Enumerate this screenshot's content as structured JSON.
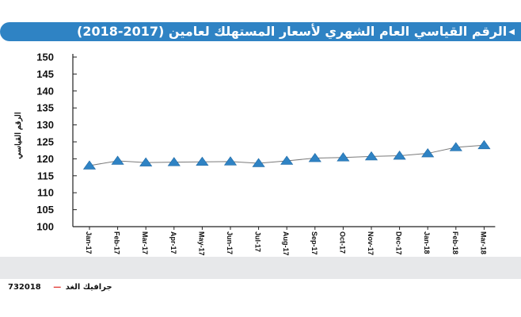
{
  "header": {
    "title": "الرقم القياسي العام الشهري لأسعار المستهلك لعامين (2017-2018)",
    "arrow_icon": "left-triangle-icon",
    "background_color": "#2f83c4"
  },
  "footer": {
    "id_code": "732018",
    "credit_text": "جرافيك الغد"
  },
  "chart_data": {
    "type": "line",
    "title": "الرقم القياسي العام الشهري لأسعار المستهلك لعامين (2017-2018)",
    "ylabel": "الرقم القياسي",
    "xlabel": "",
    "categories": [
      "Jan-17",
      "Feb-17",
      "Mar-17",
      "Apr-17",
      "May-17",
      "Jun-17",
      "Jul-17",
      "Aug-17",
      "Sep-17",
      "Oct-17",
      "Nov-17",
      "Dec-17",
      "Jan-18",
      "Feb-18",
      "Mar-18"
    ],
    "series": [
      {
        "name": "",
        "values": [
          118.0,
          119.4,
          118.9,
          119.0,
          119.1,
          119.2,
          118.7,
          119.4,
          120.2,
          120.4,
          120.7,
          120.9,
          121.6,
          123.4,
          124.0
        ],
        "color": "#2f83c4",
        "marker": "triangle"
      }
    ],
    "yticks": [
      100,
      105,
      110,
      115,
      120,
      125,
      130,
      135,
      140,
      145,
      150
    ],
    "ylim": [
      100,
      150
    ],
    "grid": false,
    "legend": "none"
  }
}
